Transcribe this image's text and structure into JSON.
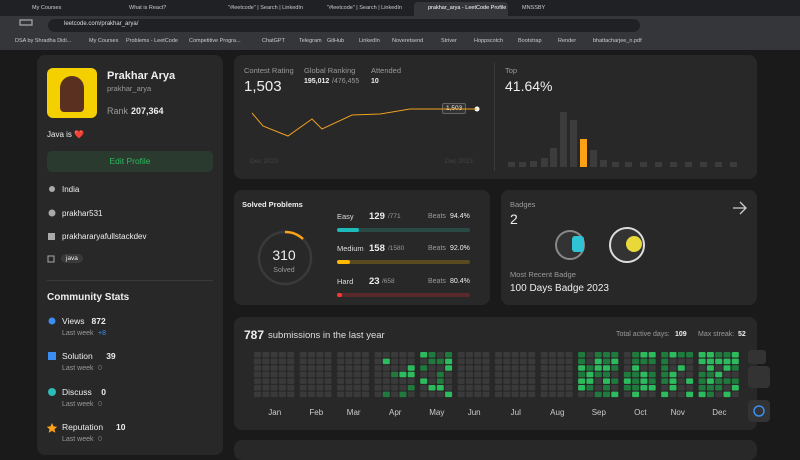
{
  "browser": {
    "tabs": [
      "My Courses",
      "What is React?",
      "\"#leetcode\" | Search | LinkedIn",
      "\"#leetcode\" | Search | LinkedIn",
      "prakhar_arya - LeetCode Profile",
      "MNSSBY"
    ],
    "url": "leetcode.com/prakhar_arya/",
    "bookmarks": [
      "DSA by Shradha Didi...",
      "My Courses",
      "Problems - LeetCode",
      "Competitive Progra...",
      "ChatGPT",
      "Telegram",
      "GitHub",
      "LinkedIn",
      "Noveretsend",
      "Striver",
      "Hoppscotch",
      "Bootstrap",
      "Render",
      "bhattacharjee_n.pdf"
    ]
  },
  "profile": {
    "name": "Prakhar Arya",
    "username": "prakhar_arya",
    "rank_label": "Rank",
    "rank": "207,364",
    "readme": "Java is ❤️",
    "edit_button": "Edit Profile",
    "location": "India",
    "github": "prakhar531",
    "linkedin": "prakhararyafullstackdev",
    "skill": "java"
  },
  "community_stats": {
    "title": "Community Stats",
    "items": [
      {
        "label": "Views",
        "value": "872",
        "last_week_label": "Last week",
        "change": "+8"
      },
      {
        "label": "Solution",
        "value": "39",
        "last_week_label": "Last week",
        "change": "0"
      },
      {
        "label": "Discuss",
        "value": "0",
        "last_week_label": "Last week",
        "change": "0"
      },
      {
        "label": "Reputation",
        "value": "10",
        "last_week_label": "Last week",
        "change": "0"
      }
    ]
  },
  "contest": {
    "rating_label": "Contest Rating",
    "rating": "1,503",
    "ranking_label": "Global Ranking",
    "ranking": "195,012",
    "ranking_total": "/476,455",
    "attended_label": "Attended",
    "attended": "10",
    "x_labels": [
      "Dec 2023",
      "Dec 2023"
    ],
    "top_label": "Top",
    "top": "41.64%"
  },
  "solved": {
    "title": "Solved Problems",
    "total": "310",
    "total_label": "Solved",
    "levels": [
      {
        "name": "Easy",
        "solved": "129",
        "total": "/771",
        "beats_label": "Beats",
        "beats": "94.4%"
      },
      {
        "name": "Medium",
        "solved": "158",
        "total": "/1580",
        "beats_label": "Beats",
        "beats": "92.0%"
      },
      {
        "name": "Hard",
        "solved": "23",
        "total": "/658",
        "beats_label": "Beats",
        "beats": "80.4%"
      }
    ]
  },
  "badges": {
    "title": "Badges",
    "count": "2",
    "recent_label": "Most Recent Badge",
    "recent": "100 Days Badge 2023"
  },
  "submissions": {
    "count": "787",
    "label": "submissions in the last year",
    "active_label": "Total active days:",
    "active": "109",
    "streak_label": "Max streak:",
    "streak": "52",
    "months": [
      "Jan",
      "Feb",
      "Mar",
      "Apr",
      "May",
      "Jun",
      "Jul",
      "Aug",
      "Sep",
      "Oct",
      "Nov",
      "Dec"
    ]
  }
}
